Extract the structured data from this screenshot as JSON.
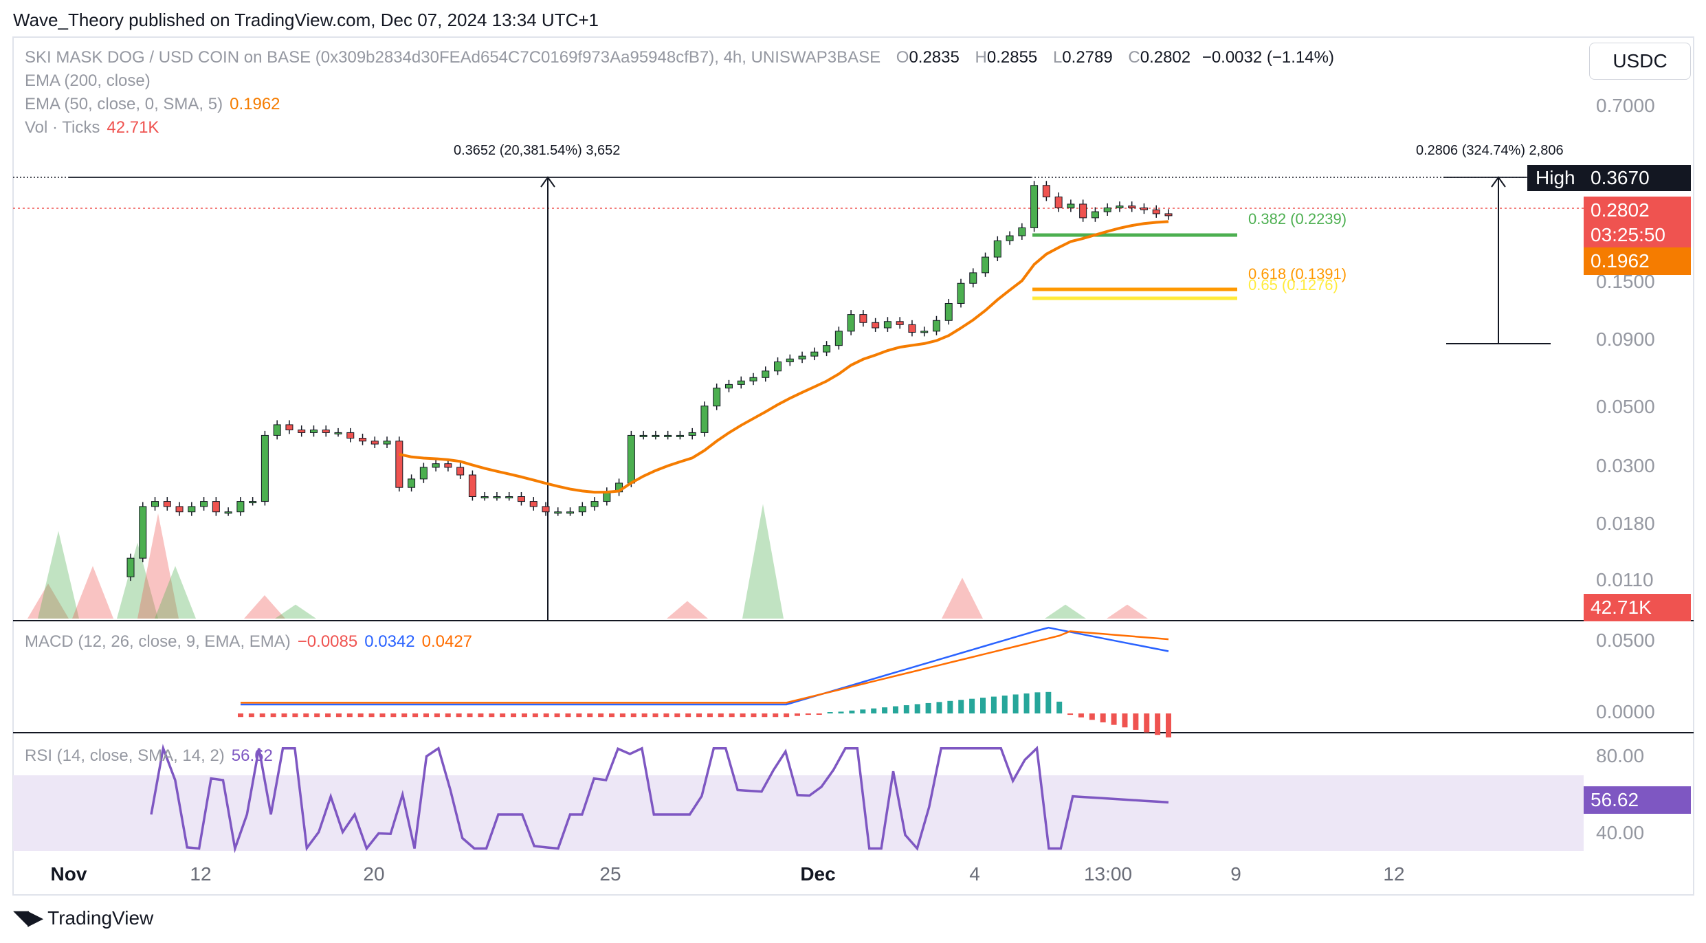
{
  "header": {
    "publisher": "Wave_Theory published on TradingView.com, Dec 07, 2024 13:34 UTC+1"
  },
  "symbol": {
    "title": "SKI MASK DOG / USD COIN on BASE (0x309b2834d30FEAd654C7C0169f973Aa95948cfB7), 4h, UNISWAP3BASE",
    "o_label": "O",
    "o": "0.2835",
    "h_label": "H",
    "h": "0.2855",
    "l_label": "L",
    "l": "0.2789",
    "c_label": "C",
    "c": "0.2802",
    "change": "−0.0032 (−1.14%)"
  },
  "indicators": {
    "ema200": "EMA (200, close)",
    "ema50": "EMA (50, close, 0, SMA, 5)",
    "ema50_value": "0.1962",
    "vol": "Vol · Ticks",
    "vol_value": "42.71K",
    "macd": "MACD (12, 26, close, 9, EMA, EMA)",
    "macd_hist": "−0.0085",
    "macd_line": "0.0342",
    "macd_signal": "0.0427",
    "rsi": "RSI (14, close, SMA, 14, 2)",
    "rsi_value": "56.62"
  },
  "currency_button": "USDC",
  "price_axis": [
    "0.7000",
    "0.1500",
    "0.0900",
    "0.0500",
    "0.0300",
    "0.0180",
    "0.0110"
  ],
  "macd_axis": [
    "0.0500",
    "0.0000"
  ],
  "rsi_axis": [
    "80.00",
    "40.00"
  ],
  "price_tags": {
    "high_label": "High",
    "high_value": "0.3670",
    "last_price": "0.2802",
    "countdown": "03:25:50",
    "ema_value": "0.1962",
    "volume": "42.71K",
    "rsi": "56.62"
  },
  "x_axis": [
    "Nov",
    "12",
    "20",
    "25",
    "Dec",
    "4",
    "13:00",
    "9",
    "12"
  ],
  "annotations": {
    "left_measure": "0.3652 (20,381.54%) 3,652",
    "right_measure": "0.2806 (324.74%) 2,806"
  },
  "fib_levels": [
    {
      "label": "0.382 (0.2239)",
      "color": "#4caf50"
    },
    {
      "label": "0.618 (0.1391)",
      "color": "#ff9800"
    },
    {
      "label": "0.65 (0.1276)",
      "color": "#ffeb3b"
    }
  ],
  "colors": {
    "up": "#26a69a",
    "up_candle": "#4caf50",
    "down": "#ef5350",
    "ema": "#f57c00",
    "macd_line": "#2962ff",
    "macd_signal": "#ff6d00",
    "rsi": "#7e57c2",
    "rsi_band": "#ede7f6"
  },
  "footer": {
    "brand": "TradingView"
  },
  "chart_data": {
    "type": "candlestick",
    "symbol": "SKI MASK DOG / USD COIN",
    "interval": "4h",
    "price_scale": "log",
    "candles_close_approx": [
      0.014,
      0.022,
      0.023,
      0.022,
      0.021,
      0.022,
      0.023,
      0.021,
      0.021,
      0.023,
      0.023,
      0.041,
      0.045,
      0.043,
      0.042,
      0.043,
      0.042,
      0.042,
      0.04,
      0.039,
      0.038,
      0.039,
      0.026,
      0.028,
      0.031,
      0.032,
      0.031,
      0.029,
      0.024,
      0.024,
      0.024,
      0.024,
      0.023,
      0.022,
      0.021,
      0.021,
      0.021,
      0.022,
      0.023,
      0.025,
      0.027,
      0.041,
      0.041,
      0.041,
      0.041,
      0.041,
      0.042,
      0.053,
      0.062,
      0.064,
      0.066,
      0.068,
      0.072,
      0.078,
      0.08,
      0.082,
      0.085,
      0.09,
      0.102,
      0.118,
      0.11,
      0.105,
      0.111,
      0.108,
      0.101,
      0.102,
      0.112,
      0.13,
      0.155,
      0.17,
      0.195,
      0.225,
      0.235,
      0.252,
      0.365,
      0.33,
      0.3,
      0.31,
      0.275,
      0.29,
      0.3,
      0.305,
      0.3,
      0.295,
      0.285,
      0.28
    ],
    "ema50_last": 0.1962,
    "fib": [
      {
        "level": 0.382,
        "price": 0.2239
      },
      {
        "level": 0.618,
        "price": 0.1391
      },
      {
        "level": 0.65,
        "price": 0.1276
      }
    ],
    "high": 0.367,
    "last": 0.2802,
    "volume_last": "42.71K",
    "macd": {
      "hist": -0.0085,
      "macd": 0.0342,
      "signal": 0.0427
    },
    "rsi": {
      "value": 56.62,
      "band": [
        30,
        70
      ]
    }
  }
}
